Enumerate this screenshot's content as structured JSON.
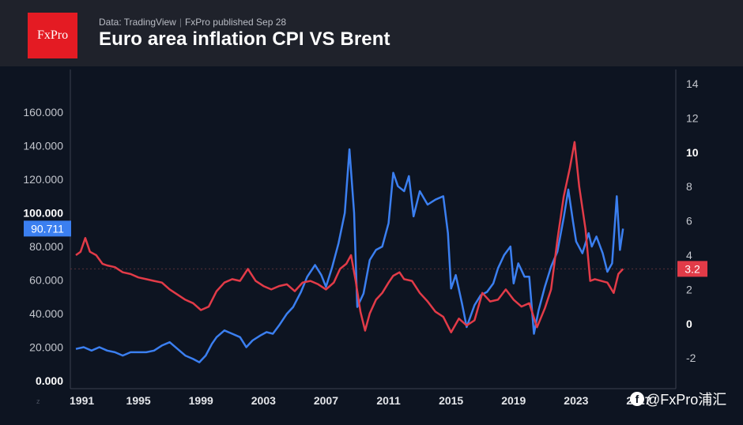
{
  "header": {
    "logo_text": "FxPro",
    "source": "Data: TradingView",
    "separator": "|",
    "published": "FxPro published Sep 28",
    "title": "Euro area inflation CPI VS Brent"
  },
  "watermark": {
    "icon": "facebook-icon",
    "text": "@FxPro浦汇"
  },
  "tv_mark": "z",
  "chart_data": {
    "type": "line",
    "title": "Euro area inflation CPI VS Brent",
    "x_range": [
      1991,
      2027
    ],
    "x_ticks": [
      "1991",
      "1995",
      "1999",
      "2003",
      "2007",
      "2011",
      "2015",
      "2019",
      "2023",
      "2027"
    ],
    "left_axis": {
      "range": [
        0,
        170
      ],
      "ticks": [
        "0.000",
        "20.000",
        "40.000",
        "60.000",
        "80.000",
        "100.000",
        "120.000",
        "140.000",
        "160.000"
      ]
    },
    "right_axis": {
      "range": [
        -4,
        14.5
      ],
      "ticks": [
        "-2",
        "0",
        "2",
        "4",
        "6",
        "8",
        "10",
        "12",
        "14"
      ]
    },
    "grid": false,
    "reference_line": {
      "axis": "right",
      "value": 3.2,
      "color": "#e23b48"
    },
    "series": [
      {
        "axis": "left",
        "color": "#3b7ff0",
        "last_label": "90.711",
        "points": [
          [
            1991.0,
            19
          ],
          [
            1991.5,
            20
          ],
          [
            1992.0,
            18
          ],
          [
            1992.5,
            20
          ],
          [
            1993.0,
            18
          ],
          [
            1993.5,
            17
          ],
          [
            1994.0,
            15
          ],
          [
            1994.5,
            17
          ],
          [
            1995.0,
            17
          ],
          [
            1995.5,
            17
          ],
          [
            1996.0,
            18
          ],
          [
            1996.5,
            21
          ],
          [
            1997.0,
            23
          ],
          [
            1997.5,
            19
          ],
          [
            1998.0,
            15
          ],
          [
            1998.5,
            13
          ],
          [
            1998.9,
            11
          ],
          [
            1999.3,
            15
          ],
          [
            1999.7,
            22
          ],
          [
            2000.0,
            26
          ],
          [
            2000.5,
            30
          ],
          [
            2001.0,
            28
          ],
          [
            2001.5,
            26
          ],
          [
            2001.9,
            20
          ],
          [
            2002.3,
            24
          ],
          [
            2002.8,
            27
          ],
          [
            2003.2,
            29
          ],
          [
            2003.6,
            28
          ],
          [
            2004.0,
            33
          ],
          [
            2004.5,
            40
          ],
          [
            2004.9,
            44
          ],
          [
            2005.4,
            53
          ],
          [
            2005.8,
            62
          ],
          [
            2006.3,
            69
          ],
          [
            2006.7,
            63
          ],
          [
            2007.0,
            56
          ],
          [
            2007.4,
            68
          ],
          [
            2007.8,
            82
          ],
          [
            2008.2,
            100
          ],
          [
            2008.5,
            138
          ],
          [
            2008.8,
            100
          ],
          [
            2009.0,
            44
          ],
          [
            2009.4,
            52
          ],
          [
            2009.8,
            72
          ],
          [
            2010.2,
            78
          ],
          [
            2010.6,
            80
          ],
          [
            2011.0,
            94
          ],
          [
            2011.3,
            124
          ],
          [
            2011.6,
            116
          ],
          [
            2012.0,
            113
          ],
          [
            2012.3,
            122
          ],
          [
            2012.6,
            98
          ],
          [
            2013.0,
            113
          ],
          [
            2013.5,
            105
          ],
          [
            2014.0,
            108
          ],
          [
            2014.5,
            110
          ],
          [
            2014.8,
            88
          ],
          [
            2015.0,
            55
          ],
          [
            2015.3,
            63
          ],
          [
            2015.7,
            46
          ],
          [
            2016.0,
            32
          ],
          [
            2016.5,
            45
          ],
          [
            2016.9,
            51
          ],
          [
            2017.3,
            53
          ],
          [
            2017.7,
            58
          ],
          [
            2018.0,
            67
          ],
          [
            2018.4,
            75
          ],
          [
            2018.8,
            80
          ],
          [
            2019.0,
            58
          ],
          [
            2019.3,
            70
          ],
          [
            2019.7,
            62
          ],
          [
            2020.0,
            62
          ],
          [
            2020.3,
            28
          ],
          [
            2020.6,
            42
          ],
          [
            2021.0,
            56
          ],
          [
            2021.4,
            68
          ],
          [
            2021.8,
            77
          ],
          [
            2022.2,
            97
          ],
          [
            2022.5,
            114
          ],
          [
            2022.8,
            95
          ],
          [
            2023.0,
            83
          ],
          [
            2023.4,
            76
          ],
          [
            2023.8,
            88
          ],
          [
            2024.0,
            80
          ],
          [
            2024.3,
            86
          ],
          [
            2024.7,
            76
          ],
          [
            2025.0,
            65
          ],
          [
            2025.3,
            70
          ],
          [
            2025.6,
            110
          ],
          [
            2025.8,
            78
          ],
          [
            2026.0,
            90.711
          ]
        ]
      },
      {
        "axis": "right",
        "color": "#e23b48",
        "last_label": "3.2",
        "points": [
          [
            1991.0,
            4.0
          ],
          [
            1991.3,
            4.2
          ],
          [
            1991.6,
            5.0
          ],
          [
            1991.9,
            4.2
          ],
          [
            1992.3,
            4.0
          ],
          [
            1992.7,
            3.5
          ],
          [
            1993.0,
            3.4
          ],
          [
            1993.5,
            3.3
          ],
          [
            1994.0,
            3.0
          ],
          [
            1994.5,
            2.9
          ],
          [
            1995.0,
            2.7
          ],
          [
            1995.5,
            2.6
          ],
          [
            1996.0,
            2.5
          ],
          [
            1996.5,
            2.4
          ],
          [
            1997.0,
            2.0
          ],
          [
            1997.5,
            1.7
          ],
          [
            1998.0,
            1.4
          ],
          [
            1998.5,
            1.2
          ],
          [
            1999.0,
            0.8
          ],
          [
            1999.5,
            1.0
          ],
          [
            2000.0,
            1.9
          ],
          [
            2000.5,
            2.4
          ],
          [
            2001.0,
            2.6
          ],
          [
            2001.5,
            2.5
          ],
          [
            2002.0,
            3.2
          ],
          [
            2002.5,
            2.5
          ],
          [
            2003.0,
            2.2
          ],
          [
            2003.5,
            2.0
          ],
          [
            2004.0,
            2.2
          ],
          [
            2004.5,
            2.3
          ],
          [
            2005.0,
            1.9
          ],
          [
            2005.5,
            2.4
          ],
          [
            2006.0,
            2.5
          ],
          [
            2006.5,
            2.3
          ],
          [
            2007.0,
            2.0
          ],
          [
            2007.5,
            2.4
          ],
          [
            2007.9,
            3.2
          ],
          [
            2008.3,
            3.5
          ],
          [
            2008.6,
            4.0
          ],
          [
            2008.9,
            2.5
          ],
          [
            2009.2,
            0.7
          ],
          [
            2009.5,
            -0.4
          ],
          [
            2009.8,
            0.6
          ],
          [
            2010.2,
            1.4
          ],
          [
            2010.6,
            1.8
          ],
          [
            2011.0,
            2.4
          ],
          [
            2011.3,
            2.8
          ],
          [
            2011.7,
            3.0
          ],
          [
            2012.0,
            2.6
          ],
          [
            2012.5,
            2.5
          ],
          [
            2013.0,
            1.8
          ],
          [
            2013.5,
            1.3
          ],
          [
            2014.0,
            0.7
          ],
          [
            2014.5,
            0.4
          ],
          [
            2015.0,
            -0.5
          ],
          [
            2015.5,
            0.3
          ],
          [
            2016.0,
            -0.1
          ],
          [
            2016.5,
            0.2
          ],
          [
            2017.0,
            1.8
          ],
          [
            2017.5,
            1.3
          ],
          [
            2018.0,
            1.4
          ],
          [
            2018.5,
            2.0
          ],
          [
            2019.0,
            1.4
          ],
          [
            2019.5,
            1.0
          ],
          [
            2020.0,
            1.2
          ],
          [
            2020.5,
            -0.2
          ],
          [
            2021.0,
            0.9
          ],
          [
            2021.4,
            2.0
          ],
          [
            2021.8,
            4.9
          ],
          [
            2022.2,
            7.4
          ],
          [
            2022.6,
            9.1
          ],
          [
            2022.9,
            10.6
          ],
          [
            2023.2,
            8.0
          ],
          [
            2023.6,
            5.5
          ],
          [
            2023.9,
            2.5
          ],
          [
            2024.2,
            2.6
          ],
          [
            2024.6,
            2.5
          ],
          [
            2025.0,
            2.4
          ],
          [
            2025.4,
            1.8
          ],
          [
            2025.7,
            2.9
          ],
          [
            2026.0,
            3.2
          ]
        ]
      }
    ]
  }
}
